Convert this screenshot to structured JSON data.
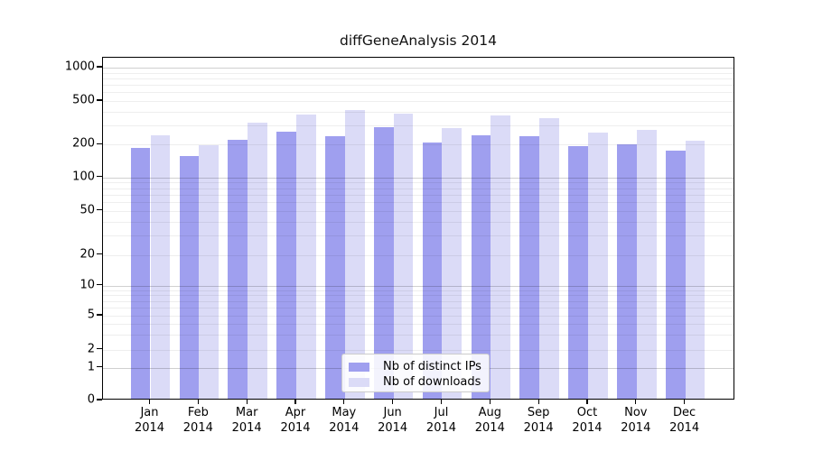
{
  "chart_data": {
    "type": "bar",
    "title": "diffGeneAnalysis 2014",
    "year_label": "2014",
    "categories": [
      "Jan",
      "Feb",
      "Mar",
      "Apr",
      "May",
      "Jun",
      "Jul",
      "Aug",
      "Sep",
      "Oct",
      "Nov",
      "Dec"
    ],
    "series": [
      {
        "name": "Nb of distinct IPs",
        "color": "#9f9fef",
        "values": [
          180,
          150,
          213,
          254,
          231,
          279,
          200,
          234,
          231,
          188,
          195,
          168
        ]
      },
      {
        "name": "Nb of downloads",
        "color": "#dbdbf7",
        "values": [
          236,
          189,
          307,
          360,
          399,
          367,
          271,
          354,
          334,
          246,
          262,
          208
        ]
      }
    ],
    "yscale": "symlog",
    "ylim": [
      0,
      1000
    ],
    "y_tick_labels": [
      "1000",
      "500",
      "200",
      "100",
      "50",
      "20",
      "10",
      "5",
      "2",
      "1",
      "0"
    ],
    "grid": true,
    "legend_position": "lower center",
    "colors": {
      "background": "#ffffff",
      "grid_major": "#c9c9c9",
      "grid_minor": "#eaeaea",
      "spine": "#000000"
    }
  }
}
